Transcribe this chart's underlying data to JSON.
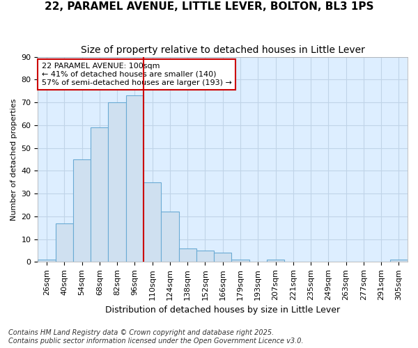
{
  "title1": "22, PARAMEL AVENUE, LITTLE LEVER, BOLTON, BL3 1PS",
  "title2": "Size of property relative to detached houses in Little Lever",
  "xlabel": "Distribution of detached houses by size in Little Lever",
  "ylabel": "Number of detached properties",
  "categories": [
    "26sqm",
    "40sqm",
    "54sqm",
    "68sqm",
    "82sqm",
    "96sqm",
    "110sqm",
    "124sqm",
    "138sqm",
    "152sqm",
    "166sqm",
    "179sqm",
    "193sqm",
    "207sqm",
    "221sqm",
    "235sqm",
    "249sqm",
    "263sqm",
    "277sqm",
    "291sqm",
    "305sqm"
  ],
  "values": [
    1,
    17,
    45,
    59,
    70,
    73,
    35,
    22,
    6,
    5,
    4,
    1,
    0,
    1,
    0,
    0,
    0,
    0,
    0,
    0,
    1
  ],
  "bar_color": "#cfe0f0",
  "bar_edge_color": "#6aaad4",
  "grid_color": "#c0d4e8",
  "plot_bg_color": "#ddeeff",
  "fig_bg_color": "#ffffff",
  "vline_x": 5.5,
  "vline_color": "#cc0000",
  "annotation_text": "22 PARAMEL AVENUE: 100sqm\n← 41% of detached houses are smaller (140)\n57% of semi-detached houses are larger (193) →",
  "annotation_box_facecolor": "#ffffff",
  "annotation_edge_color": "#cc0000",
  "ylim": [
    0,
    90
  ],
  "yticks": [
    0,
    10,
    20,
    30,
    40,
    50,
    60,
    70,
    80,
    90
  ],
  "footer1": "Contains HM Land Registry data © Crown copyright and database right 2025.",
  "footer2": "Contains public sector information licensed under the Open Government Licence v3.0.",
  "title1_fontsize": 11,
  "title2_fontsize": 10,
  "xlabel_fontsize": 9,
  "ylabel_fontsize": 8,
  "tick_fontsize": 8,
  "footer_fontsize": 7
}
